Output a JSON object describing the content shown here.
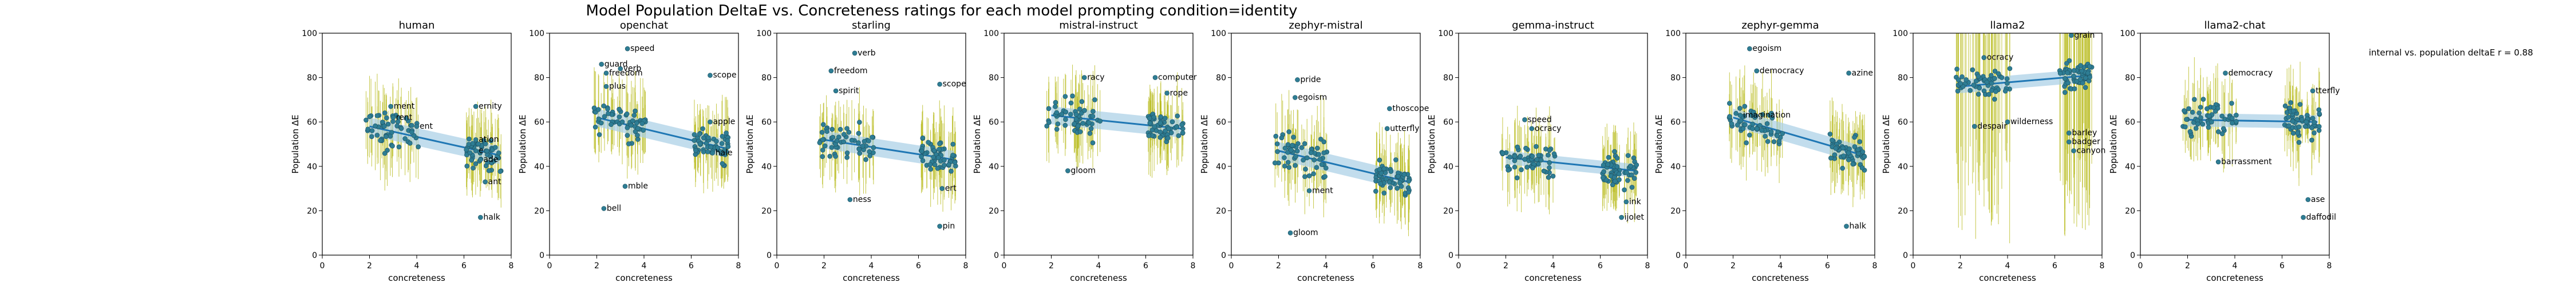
{
  "figure": {
    "title": "Model Population DeltaE vs. Concreteness ratings for each model prompting condition=identity",
    "annotation": "internal vs. population deltaE r = 0.88"
  },
  "colors": {
    "point": "#2e7d94",
    "errorbar": "#b8bb1c",
    "fit_line": "#1f77b4",
    "fit_band": "#a8cfe6"
  },
  "chart_data": [
    {
      "type": "scatter",
      "title": "human",
      "xlabel": "concreteness",
      "ylabel": "Population ΔE",
      "xlim": [
        0,
        8
      ],
      "ylim": [
        0,
        100
      ],
      "x_ticks": [
        0,
        2,
        4,
        6,
        8
      ],
      "y_ticks": [
        0,
        20,
        40,
        60,
        80,
        100
      ],
      "fit": {
        "x": [
          2.0,
          7.5
        ],
        "y": [
          58,
          45
        ],
        "band": 4
      },
      "labels": [
        {
          "text": "ment",
          "x": 2.9,
          "y": 67
        },
        {
          "text": "rent",
          "x": 3.0,
          "y": 62
        },
        {
          "text": "ent",
          "x": 4.0,
          "y": 58
        },
        {
          "text": "ernity",
          "x": 6.5,
          "y": 67
        },
        {
          "text": "ation",
          "x": 6.5,
          "y": 52
        },
        {
          "text": "e",
          "x": 6.5,
          "y": 47
        },
        {
          "text": "ade",
          "x": 6.7,
          "y": 43
        },
        {
          "text": "ant",
          "x": 6.9,
          "y": 33
        },
        {
          "text": "halk",
          "x": 6.7,
          "y": 17
        }
      ]
    },
    {
      "type": "scatter",
      "title": "openchat",
      "xlabel": "concreteness",
      "ylabel": "Population ΔE",
      "xlim": [
        0,
        8
      ],
      "ylim": [
        0,
        100
      ],
      "x_ticks": [
        0,
        2,
        4,
        6,
        8
      ],
      "y_ticks": [
        0,
        20,
        40,
        60,
        80,
        100
      ],
      "fit": {
        "x": [
          2.0,
          7.5
        ],
        "y": [
          62,
          48
        ],
        "band": 4
      },
      "labels": [
        {
          "text": "speed",
          "x": 3.3,
          "y": 93
        },
        {
          "text": "verb",
          "x": 3.0,
          "y": 84
        },
        {
          "text": "freedom",
          "x": 2.4,
          "y": 82
        },
        {
          "text": "guard",
          "x": 2.2,
          "y": 86
        },
        {
          "text": "plus",
          "x": 2.4,
          "y": 76
        },
        {
          "text": "mble",
          "x": 3.2,
          "y": 31
        },
        {
          "text": "bell",
          "x": 2.3,
          "y": 21
        },
        {
          "text": "scope",
          "x": 6.8,
          "y": 81
        },
        {
          "text": "apple",
          "x": 6.8,
          "y": 60
        },
        {
          "text": "hale",
          "x": 6.9,
          "y": 46
        }
      ]
    },
    {
      "type": "scatter",
      "title": "starling",
      "xlabel": "concreteness",
      "ylabel": "Population ΔE",
      "xlim": [
        0,
        8
      ],
      "ylim": [
        0,
        100
      ],
      "x_ticks": [
        0,
        2,
        4,
        6,
        8
      ],
      "y_ticks": [
        0,
        20,
        40,
        60,
        80,
        100
      ],
      "fit": {
        "x": [
          2.0,
          7.5
        ],
        "y": [
          52,
          43
        ],
        "band": 4
      },
      "labels": [
        {
          "text": "verb",
          "x": 3.3,
          "y": 91
        },
        {
          "text": "freedom",
          "x": 2.3,
          "y": 83
        },
        {
          "text": "spirit",
          "x": 2.5,
          "y": 74
        },
        {
          "text": "ness",
          "x": 3.1,
          "y": 25
        },
        {
          "text": "scope",
          "x": 6.9,
          "y": 77
        },
        {
          "text": "ert",
          "x": 7.0,
          "y": 30
        },
        {
          "text": "pin",
          "x": 6.9,
          "y": 13
        }
      ]
    },
    {
      "type": "scatter",
      "title": "mistral-instruct",
      "xlabel": "concreteness",
      "ylabel": "Population ΔE",
      "xlim": [
        0,
        8
      ],
      "ylim": [
        0,
        100
      ],
      "x_ticks": [
        0,
        2,
        4,
        6,
        8
      ],
      "y_ticks": [
        0,
        20,
        40,
        60,
        80,
        100
      ],
      "fit": {
        "x": [
          2.0,
          7.5
        ],
        "y": [
          63,
          57
        ],
        "band": 4
      },
      "labels": [
        {
          "text": "racy",
          "x": 3.4,
          "y": 80
        },
        {
          "text": "computer",
          "x": 6.4,
          "y": 80
        },
        {
          "text": "rope",
          "x": 6.9,
          "y": 73
        },
        {
          "text": "gloom",
          "x": 2.7,
          "y": 38
        }
      ]
    },
    {
      "type": "scatter",
      "title": "zephyr-mistral",
      "xlabel": "concreteness",
      "ylabel": "Population ΔE",
      "xlim": [
        0,
        8
      ],
      "ylim": [
        0,
        100
      ],
      "x_ticks": [
        0,
        2,
        4,
        6,
        8
      ],
      "y_ticks": [
        0,
        20,
        40,
        60,
        80,
        100
      ],
      "fit": {
        "x": [
          2.0,
          7.5
        ],
        "y": [
          47,
          33
        ],
        "band": 4
      },
      "labels": [
        {
          "text": "pride",
          "x": 2.8,
          "y": 79
        },
        {
          "text": "egoism",
          "x": 2.7,
          "y": 71
        },
        {
          "text": "ment",
          "x": 3.3,
          "y": 29
        },
        {
          "text": "thoscope",
          "x": 6.7,
          "y": 66
        },
        {
          "text": "utterfly",
          "x": 6.6,
          "y": 57
        },
        {
          "text": "gloom",
          "x": 2.5,
          "y": 10
        }
      ]
    },
    {
      "type": "scatter",
      "title": "gemma-instruct",
      "xlabel": "concreteness",
      "ylabel": "Population ΔE",
      "xlim": [
        0,
        8
      ],
      "ylim": [
        0,
        100
      ],
      "x_ticks": [
        0,
        2,
        4,
        6,
        8
      ],
      "y_ticks": [
        0,
        20,
        40,
        60,
        80,
        100
      ],
      "fit": {
        "x": [
          2.0,
          7.5
        ],
        "y": [
          44,
          38
        ],
        "band": 3
      },
      "labels": [
        {
          "text": "speed",
          "x": 2.8,
          "y": 61
        },
        {
          "text": "ocracy",
          "x": 3.1,
          "y": 57
        },
        {
          "text": "ink",
          "x": 7.1,
          "y": 24
        },
        {
          "text": "ijolet",
          "x": 6.9,
          "y": 17
        }
      ]
    },
    {
      "type": "scatter",
      "title": "zephyr-gemma",
      "xlabel": "concreteness",
      "ylabel": "Population ΔE",
      "xlim": [
        0,
        8
      ],
      "ylim": [
        0,
        100
      ],
      "x_ticks": [
        0,
        2,
        4,
        6,
        8
      ],
      "y_ticks": [
        0,
        20,
        40,
        60,
        80,
        100
      ],
      "fit": {
        "x": [
          2.0,
          7.5
        ],
        "y": [
          62,
          45
        ],
        "band": 4
      },
      "labels": [
        {
          "text": "egoism",
          "x": 2.7,
          "y": 93
        },
        {
          "text": "democracy",
          "x": 3.0,
          "y": 83
        },
        {
          "text": "imagination",
          "x": 2.3,
          "y": 63
        },
        {
          "text": "azine",
          "x": 6.9,
          "y": 82
        },
        {
          "text": "halk",
          "x": 6.8,
          "y": 13
        }
      ]
    },
    {
      "type": "scatter",
      "title": "llama2",
      "xlabel": "concreteness",
      "ylabel": "Population ΔE",
      "xlim": [
        0,
        8
      ],
      "ylim": [
        0,
        100
      ],
      "x_ticks": [
        0,
        2,
        4,
        6,
        8
      ],
      "y_ticks": [
        0,
        20,
        40,
        60,
        80,
        100
      ],
      "fit": {
        "x": [
          2.0,
          7.5
        ],
        "y": [
          76,
          81
        ],
        "band": 3
      },
      "labels": [
        {
          "text": "ocracy",
          "x": 3.0,
          "y": 89
        },
        {
          "text": "despair",
          "x": 2.6,
          "y": 58
        },
        {
          "text": "wilderness",
          "x": 4.0,
          "y": 60
        },
        {
          "text": "grain",
          "x": 6.7,
          "y": 99
        },
        {
          "text": "barley",
          "x": 6.6,
          "y": 55
        },
        {
          "text": "badger",
          "x": 6.6,
          "y": 51
        },
        {
          "text": "canyon",
          "x": 6.8,
          "y": 47
        }
      ]
    },
    {
      "type": "scatter",
      "title": "llama2-chat",
      "xlabel": "concreteness",
      "ylabel": "Population ΔE",
      "xlim": [
        0,
        8
      ],
      "ylim": [
        0,
        100
      ],
      "x_ticks": [
        0,
        2,
        4,
        6,
        8
      ],
      "y_ticks": [
        0,
        20,
        40,
        60,
        80,
        100
      ],
      "fit": {
        "x": [
          2.0,
          7.5
        ],
        "y": [
          61,
          60
        ],
        "band": 3
      },
      "labels": [
        {
          "text": "democracy",
          "x": 3.6,
          "y": 82
        },
        {
          "text": "barrassment",
          "x": 3.3,
          "y": 42
        },
        {
          "text": "tterfly",
          "x": 7.3,
          "y": 74
        },
        {
          "text": "ase",
          "x": 7.1,
          "y": 25
        },
        {
          "text": "daffodil",
          "x": 6.9,
          "y": 17
        }
      ]
    }
  ]
}
